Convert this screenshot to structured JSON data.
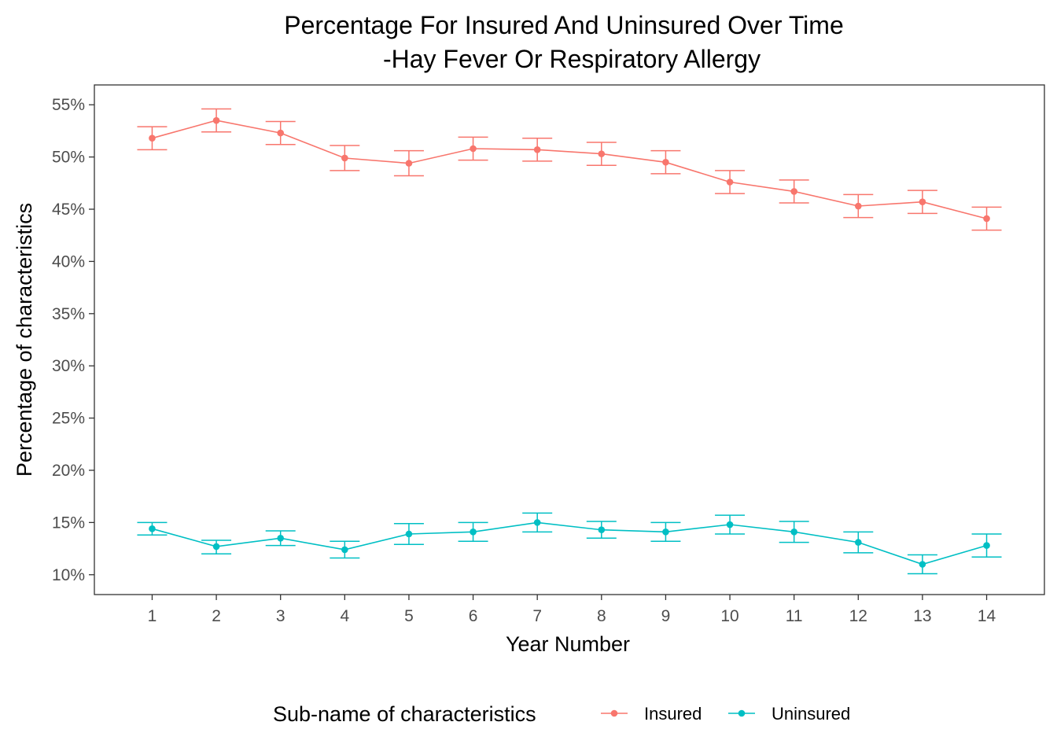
{
  "chart_data": {
    "type": "line",
    "title": "Percentage For Insured And Uninsured Over Time",
    "subtitle": "-Hay Fever Or Respiratory Allergy",
    "xlabel": "Year Number",
    "ylabel": "Percentage of characteristics",
    "x": [
      1,
      2,
      3,
      4,
      5,
      6,
      7,
      8,
      9,
      10,
      11,
      12,
      13,
      14
    ],
    "xlim": [
      0.1,
      14.9
    ],
    "ylim": [
      8.1,
      56.9
    ],
    "y_ticks": [
      10,
      15,
      20,
      25,
      30,
      35,
      40,
      45,
      50,
      55
    ],
    "y_tick_labels": [
      "10%",
      "15%",
      "20%",
      "25%",
      "30%",
      "35%",
      "40%",
      "45%",
      "50%",
      "55%"
    ],
    "grid": false,
    "error_bars": true,
    "legend": {
      "title": "Sub-name of characteristics",
      "position": "bottom"
    },
    "series": [
      {
        "name": "Insured",
        "color": "#F8766D",
        "values": [
          51.8,
          53.5,
          52.3,
          49.9,
          49.4,
          50.8,
          50.7,
          50.3,
          49.5,
          47.6,
          46.7,
          45.3,
          45.7,
          44.1
        ],
        "lower": [
          50.7,
          52.4,
          51.2,
          48.7,
          48.2,
          49.7,
          49.6,
          49.2,
          48.4,
          46.5,
          45.6,
          44.2,
          44.6,
          43.0
        ],
        "upper": [
          52.9,
          54.6,
          53.4,
          51.1,
          50.6,
          51.9,
          51.8,
          51.4,
          50.6,
          48.7,
          47.8,
          46.4,
          46.8,
          45.2
        ]
      },
      {
        "name": "Uninsured",
        "color": "#00BFC4",
        "values": [
          14.4,
          12.7,
          13.5,
          12.4,
          13.9,
          14.1,
          15.0,
          14.3,
          14.1,
          14.8,
          14.1,
          13.1,
          11.0,
          12.8
        ],
        "lower": [
          13.8,
          12.0,
          12.8,
          11.6,
          12.9,
          13.2,
          14.1,
          13.5,
          13.2,
          13.9,
          13.1,
          12.1,
          10.1,
          11.7
        ],
        "upper": [
          15.0,
          13.3,
          14.2,
          13.2,
          14.9,
          15.0,
          15.9,
          15.1,
          15.0,
          15.7,
          15.1,
          14.1,
          11.9,
          13.9
        ]
      }
    ]
  }
}
